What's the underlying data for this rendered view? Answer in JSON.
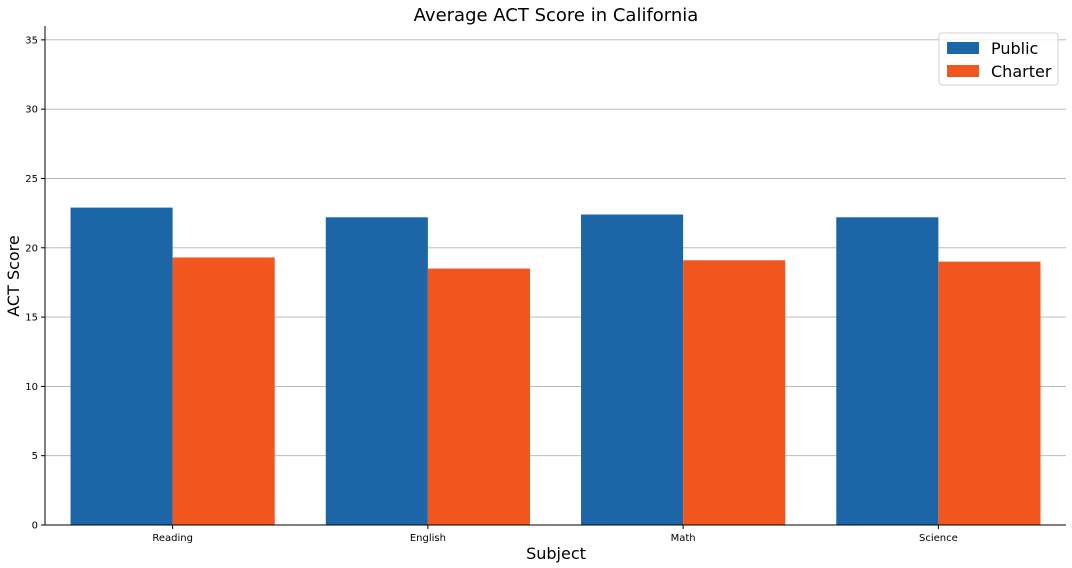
{
  "chart_data": {
    "type": "bar",
    "title": "Average ACT Score in California",
    "xlabel": "Subject",
    "ylabel": "ACT Score",
    "categories": [
      "Reading",
      "English",
      "Math",
      "Science"
    ],
    "series": [
      {
        "name": "Public",
        "color": "#1c65a6",
        "values": [
          22.9,
          22.2,
          22.4,
          22.2
        ]
      },
      {
        "name": "Charter",
        "color": "#f0561d",
        "values": [
          19.3,
          18.5,
          19.1,
          19.0
        ]
      }
    ],
    "ylim": [
      0,
      36
    ],
    "yticks": [
      "0",
      "5",
      "10",
      "15",
      "20",
      "25",
      "30",
      "35"
    ],
    "grid": "horizontal",
    "legend_position": "top-right"
  }
}
